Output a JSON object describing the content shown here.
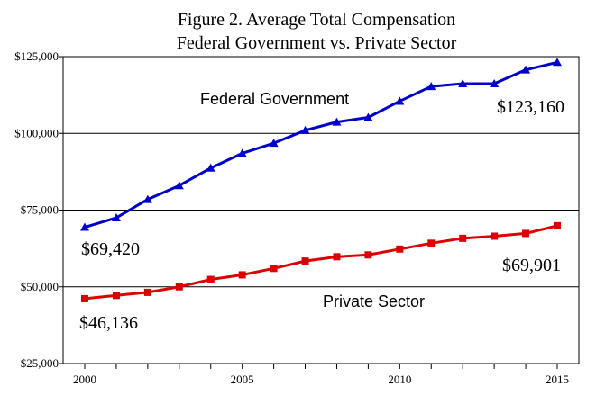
{
  "chart_data": {
    "type": "line",
    "title": [
      "Figure 2. Average  Total Compensation",
      "Federal Government vs. Private Sector"
    ],
    "xlabel": "",
    "ylabel": "",
    "x": [
      2000,
      2001,
      2002,
      2003,
      2004,
      2005,
      2006,
      2007,
      2008,
      2009,
      2010,
      2011,
      2012,
      2013,
      2014,
      2015
    ],
    "xlim": [
      2000,
      2015
    ],
    "ylim": [
      25000,
      125000
    ],
    "x_ticks": [
      2000,
      2001,
      2002,
      2003,
      2004,
      2005,
      2006,
      2007,
      2008,
      2009,
      2010,
      2011,
      2012,
      2013,
      2014,
      2015
    ],
    "x_tick_labels": [
      "2000",
      "",
      "",
      "",
      "",
      "2005",
      "",
      "",
      "",
      "",
      "2010",
      "",
      "",
      "",
      "",
      "2015"
    ],
    "y_ticks": [
      25000,
      50000,
      75000,
      100000,
      125000
    ],
    "y_tick_labels": [
      "$25,000",
      "$50,000",
      "$75,000",
      "$100,000",
      "$125,000"
    ],
    "grid": "horizontal",
    "legend": "none",
    "series": [
      {
        "name": "Federal Government",
        "color": "#0000cc",
        "marker": "triangle",
        "values": [
          69420,
          72500,
          78500,
          83000,
          88700,
          93500,
          96800,
          101000,
          103700,
          105200,
          110500,
          115300,
          116200,
          116200,
          120700,
          123160
        ]
      },
      {
        "name": "Private Sector",
        "color": "#dd0000",
        "marker": "square",
        "values": [
          46136,
          47200,
          48200,
          50000,
          52400,
          53900,
          56000,
          58400,
          59800,
          60400,
          62300,
          64200,
          65800,
          66500,
          67400,
          69901
        ]
      }
    ],
    "annotations": [
      {
        "text": "$123,160"
      },
      {
        "text": "$69,420"
      },
      {
        "text": "$69,901"
      },
      {
        "text": "$46,136"
      }
    ]
  }
}
